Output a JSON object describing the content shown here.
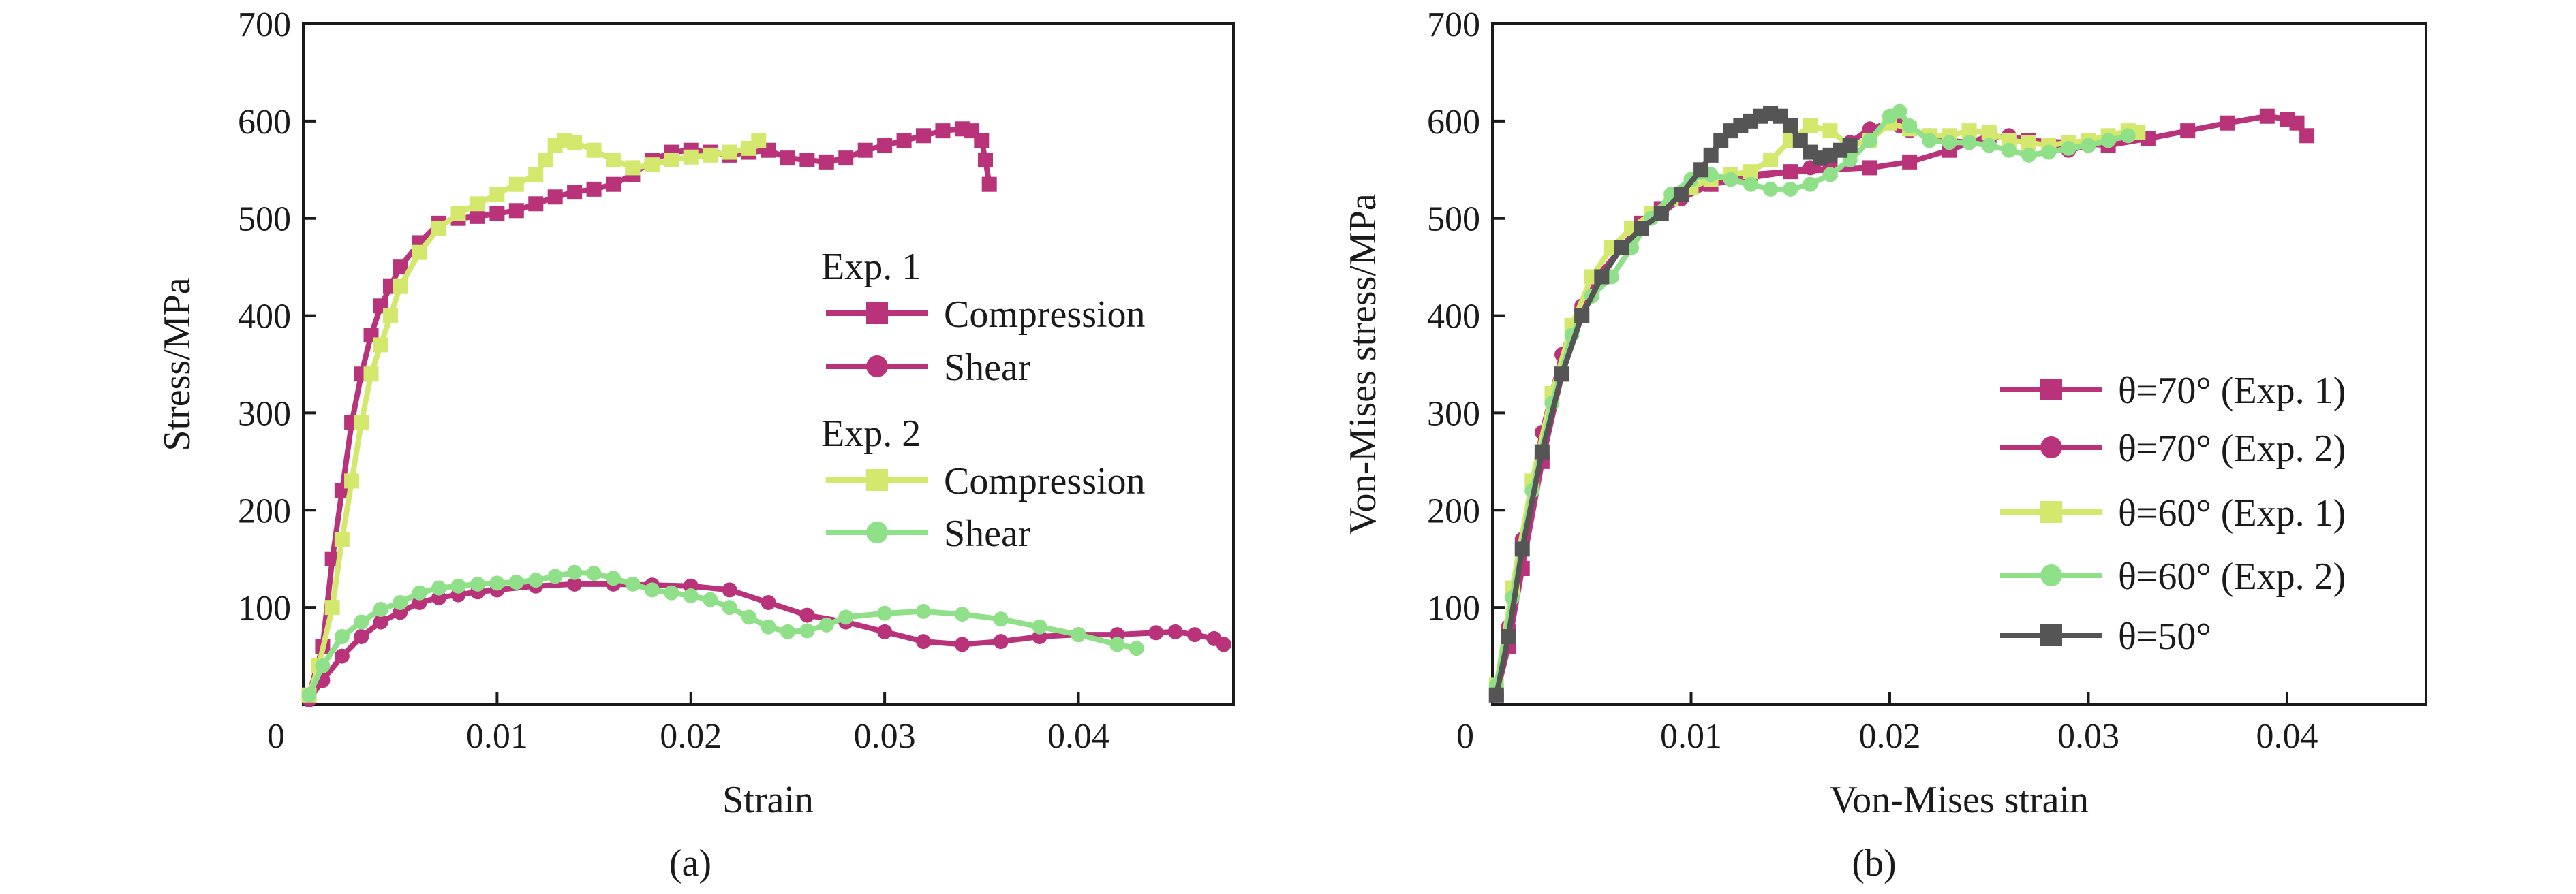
{
  "colors": {
    "magenta": "#b8337a",
    "yellow_green": "#d4e86e",
    "light_green": "#8fe089",
    "dark_gray": "#555555"
  },
  "chart_data": [
    {
      "id": "a",
      "type": "line",
      "caption": "(a)",
      "xlabel": "Strain",
      "ylabel": "Stress/MPa",
      "xlim": [
        0,
        0.048
      ],
      "ylim": [
        0,
        700
      ],
      "xticks": [
        0.01,
        0.02,
        0.03,
        0.04
      ],
      "xtick_labels": [
        "0.01",
        "0.02",
        "0.03",
        "0.04"
      ],
      "yticks": [
        100,
        200,
        300,
        400,
        500,
        600,
        700
      ],
      "ytick_labels": [
        "100",
        "200",
        "300",
        "400",
        "500",
        "600",
        "700"
      ],
      "origin_label": "0",
      "grid": false,
      "legend_position": "center-right",
      "legend_groups": [
        {
          "title": "Exp. 1",
          "entries": [
            0,
            1
          ]
        },
        {
          "title": "Exp. 2",
          "entries": [
            2,
            3
          ]
        }
      ],
      "series": [
        {
          "name": "Compression",
          "marker": "square",
          "color": "#b8337a",
          "x": [
            0.0003,
            0.001,
            0.0015,
            0.002,
            0.0025,
            0.003,
            0.0035,
            0.004,
            0.0045,
            0.005,
            0.006,
            0.007,
            0.008,
            0.009,
            0.01,
            0.011,
            0.012,
            0.013,
            0.014,
            0.015,
            0.016,
            0.017,
            0.018,
            0.019,
            0.02,
            0.021,
            0.022,
            0.023,
            0.024,
            0.025,
            0.026,
            0.027,
            0.028,
            0.029,
            0.03,
            0.031,
            0.032,
            0.033,
            0.034,
            0.0345,
            0.035,
            0.0352,
            0.0354
          ],
          "y": [
            10,
            60,
            150,
            220,
            290,
            340,
            380,
            410,
            430,
            450,
            475,
            495,
            500,
            502,
            505,
            508,
            515,
            522,
            527,
            530,
            535,
            545,
            560,
            568,
            570,
            568,
            565,
            568,
            570,
            562,
            560,
            558,
            562,
            570,
            575,
            580,
            585,
            590,
            592,
            590,
            580,
            560,
            535
          ]
        },
        {
          "name": "Shear",
          "marker": "circle",
          "color": "#b8337a",
          "x": [
            0.0003,
            0.001,
            0.002,
            0.003,
            0.004,
            0.005,
            0.006,
            0.007,
            0.008,
            0.009,
            0.01,
            0.012,
            0.014,
            0.016,
            0.018,
            0.02,
            0.022,
            0.024,
            0.026,
            0.028,
            0.03,
            0.032,
            0.034,
            0.036,
            0.038,
            0.04,
            0.042,
            0.044,
            0.045,
            0.046,
            0.047,
            0.0475
          ],
          "y": [
            5,
            25,
            50,
            70,
            85,
            95,
            105,
            110,
            113,
            116,
            118,
            122,
            124,
            124,
            123,
            122,
            118,
            105,
            92,
            85,
            75,
            65,
            62,
            65,
            70,
            72,
            72,
            74,
            75,
            72,
            68,
            62
          ]
        },
        {
          "name": "Compression",
          "marker": "square",
          "color": "#d4e86e",
          "x": [
            0.0003,
            0.0008,
            0.0015,
            0.002,
            0.0025,
            0.003,
            0.0035,
            0.004,
            0.0045,
            0.005,
            0.006,
            0.007,
            0.008,
            0.009,
            0.01,
            0.011,
            0.012,
            0.0125,
            0.013,
            0.0135,
            0.014,
            0.015,
            0.016,
            0.017,
            0.018,
            0.019,
            0.02,
            0.021,
            0.022,
            0.023,
            0.0235
          ],
          "y": [
            10,
            40,
            100,
            170,
            230,
            290,
            340,
            370,
            400,
            430,
            465,
            490,
            505,
            515,
            525,
            535,
            545,
            560,
            575,
            580,
            578,
            570,
            560,
            552,
            555,
            560,
            563,
            565,
            568,
            572,
            580
          ]
        },
        {
          "name": "Shear",
          "marker": "circle",
          "color": "#8fe089",
          "x": [
            0.0003,
            0.001,
            0.002,
            0.003,
            0.004,
            0.005,
            0.006,
            0.007,
            0.008,
            0.009,
            0.01,
            0.011,
            0.012,
            0.013,
            0.014,
            0.015,
            0.016,
            0.017,
            0.018,
            0.019,
            0.02,
            0.021,
            0.022,
            0.023,
            0.024,
            0.025,
            0.026,
            0.027,
            0.028,
            0.03,
            0.032,
            0.034,
            0.036,
            0.038,
            0.04,
            0.042,
            0.043
          ],
          "y": [
            10,
            40,
            70,
            85,
            98,
            105,
            115,
            120,
            122,
            124,
            125,
            126,
            128,
            132,
            136,
            135,
            130,
            124,
            118,
            115,
            112,
            108,
            100,
            90,
            80,
            75,
            76,
            82,
            90,
            94,
            96,
            93,
            88,
            80,
            72,
            62,
            58
          ]
        }
      ]
    },
    {
      "id": "b",
      "type": "line",
      "caption": "(b)",
      "xlabel": "Von-Mises strain",
      "ylabel": "Von-Mises stress/MPa",
      "xlim": [
        0,
        0.047
      ],
      "ylim": [
        0,
        700
      ],
      "xticks": [
        0.01,
        0.02,
        0.03,
        0.04
      ],
      "xtick_labels": [
        "0.01",
        "0.02",
        "0.03",
        "0.04"
      ],
      "yticks": [
        100,
        200,
        300,
        400,
        500,
        600,
        700
      ],
      "ytick_labels": [
        "100",
        "200",
        "300",
        "400",
        "500",
        "600",
        "700"
      ],
      "origin_label": "0",
      "grid": false,
      "legend_position": "bottom-right",
      "series": [
        {
          "name": "θ=70° (Exp. 1)",
          "marker": "square",
          "color": "#b8337a",
          "x": [
            0.0002,
            0.0008,
            0.0015,
            0.0025,
            0.0035,
            0.0045,
            0.0055,
            0.0065,
            0.0075,
            0.0085,
            0.0095,
            0.011,
            0.013,
            0.015,
            0.017,
            0.019,
            0.021,
            0.023,
            0.025,
            0.027,
            0.029,
            0.031,
            0.033,
            0.035,
            0.037,
            0.039,
            0.04,
            0.0405,
            0.041
          ],
          "y": [
            10,
            60,
            140,
            250,
            340,
            400,
            440,
            470,
            495,
            510,
            525,
            535,
            545,
            548,
            550,
            552,
            558,
            570,
            585,
            580,
            578,
            575,
            582,
            590,
            598,
            605,
            602,
            598,
            585
          ]
        },
        {
          "name": "θ=70° (Exp. 2)",
          "marker": "circle",
          "color": "#b8337a",
          "x": [
            0.0002,
            0.0008,
            0.0015,
            0.0025,
            0.0035,
            0.0045,
            0.0055,
            0.0065,
            0.0075,
            0.0085,
            0.0095,
            0.011,
            0.013,
            0.015,
            0.016,
            0.017,
            0.018,
            0.019,
            0.02,
            0.0205,
            0.021,
            0.022,
            0.023,
            0.024,
            0.025,
            0.026,
            0.027,
            0.028,
            0.029,
            0.03,
            0.031,
            0.032
          ],
          "y": [
            10,
            80,
            170,
            280,
            360,
            410,
            445,
            470,
            490,
            505,
            520,
            535,
            542,
            548,
            552,
            560,
            578,
            592,
            598,
            595,
            590,
            585,
            580,
            578,
            582,
            585,
            580,
            575,
            570,
            575,
            580,
            585
          ]
        },
        {
          "name": "θ=60° (Exp. 1)",
          "marker": "square",
          "color": "#d4e86e",
          "x": [
            0.0002,
            0.001,
            0.002,
            0.003,
            0.004,
            0.005,
            0.006,
            0.007,
            0.008,
            0.009,
            0.01,
            0.011,
            0.012,
            0.013,
            0.014,
            0.015,
            0.016,
            0.017,
            0.018,
            0.019,
            0.02,
            0.021,
            0.022,
            0.023,
            0.024,
            0.025,
            0.026,
            0.027,
            0.028,
            0.029,
            0.03,
            0.031,
            0.032,
            0.0325
          ],
          "y": [
            20,
            120,
            230,
            320,
            390,
            440,
            470,
            490,
            505,
            520,
            532,
            540,
            545,
            548,
            560,
            580,
            595,
            590,
            575,
            580,
            598,
            592,
            585,
            585,
            590,
            588,
            580,
            578,
            575,
            578,
            580,
            585,
            590,
            588
          ]
        },
        {
          "name": "θ=60° (Exp. 2)",
          "marker": "circle",
          "color": "#8fe089",
          "x": [
            0.0002,
            0.001,
            0.002,
            0.003,
            0.004,
            0.005,
            0.006,
            0.007,
            0.008,
            0.009,
            0.01,
            0.011,
            0.012,
            0.013,
            0.014,
            0.015,
            0.016,
            0.017,
            0.018,
            0.019,
            0.02,
            0.0205,
            0.021,
            0.022,
            0.023,
            0.024,
            0.025,
            0.026,
            0.027,
            0.028,
            0.029,
            0.03,
            0.031,
            0.032
          ],
          "y": [
            20,
            110,
            220,
            310,
            380,
            420,
            440,
            470,
            500,
            525,
            540,
            545,
            540,
            535,
            530,
            530,
            535,
            545,
            560,
            580,
            605,
            610,
            595,
            580,
            578,
            578,
            575,
            570,
            565,
            568,
            572,
            575,
            580,
            585
          ]
        },
        {
          "name": "θ=50°",
          "marker": "square",
          "color": "#555555",
          "x": [
            0.0002,
            0.0008,
            0.0015,
            0.0025,
            0.0035,
            0.0045,
            0.0055,
            0.0065,
            0.0075,
            0.0085,
            0.0095,
            0.0105,
            0.011,
            0.0115,
            0.012,
            0.0125,
            0.013,
            0.0135,
            0.014,
            0.0145,
            0.015,
            0.0155,
            0.016,
            0.0165,
            0.017,
            0.0175,
            0.018
          ],
          "y": [
            10,
            70,
            160,
            260,
            340,
            400,
            440,
            470,
            490,
            505,
            525,
            550,
            565,
            580,
            590,
            595,
            600,
            605,
            608,
            605,
            595,
            580,
            568,
            562,
            565,
            570,
            575
          ]
        }
      ]
    }
  ]
}
